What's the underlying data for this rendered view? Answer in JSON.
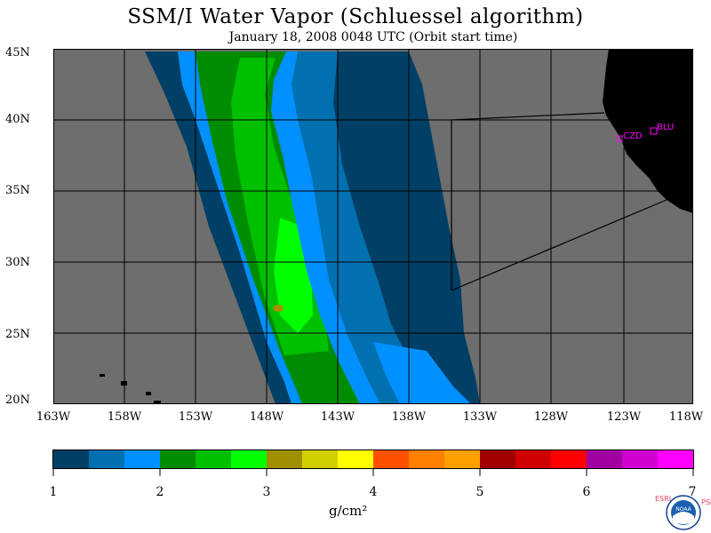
{
  "title": "SSM/I Water Vapor (Schluessel algorithm)",
  "subtitle": "January 18, 2008  0048 UTC  (Orbit start time)",
  "map": {
    "lat_labels": [
      "45N",
      "40N",
      "35N",
      "30N",
      "25N",
      "20N"
    ],
    "lon_labels": [
      "163W",
      "158W",
      "153W",
      "148W",
      "143W",
      "138W",
      "133W",
      "128W",
      "123W",
      "118W"
    ],
    "station_labels": [
      "CZD",
      "BLU"
    ],
    "ocean_color": "#6e6e6e",
    "land_color": "#000000",
    "station_color": "#ff00ff"
  },
  "colorbar": {
    "tick_labels": [
      "1",
      "2",
      "3",
      "4",
      "5",
      "6",
      "7"
    ],
    "colors": [
      "#003f66",
      "#0070b0",
      "#0090ff",
      "#008c00",
      "#00c000",
      "#00ff00",
      "#a09000",
      "#d0d000",
      "#ffff00",
      "#ff5000",
      "#ff7f00",
      "#ffa000",
      "#a00000",
      "#d00000",
      "#ff0000",
      "#a000a0",
      "#d000d0",
      "#ff00ff"
    ],
    "unit": "g/cm²"
  },
  "logo": {
    "left_text": "ESRL",
    "right_text": "PSD",
    "center_text": "NOAA"
  }
}
